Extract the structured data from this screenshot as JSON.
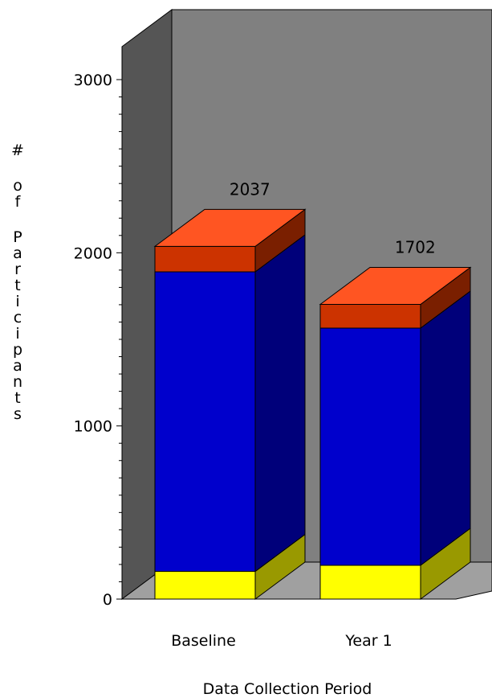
{
  "chart_data": {
    "type": "bar",
    "stacked": true,
    "three_d": true,
    "categories": [
      "Baseline",
      "Year 1"
    ],
    "series": [
      {
        "values": [
          160,
          195
        ],
        "color": "#ffff00"
      },
      {
        "values": [
          1730,
          1370
        ],
        "color": "#0000cc"
      },
      {
        "values": [
          147,
          137
        ],
        "color": "#cc3300"
      }
    ],
    "totals": [
      "2037",
      "1702"
    ],
    "xlabel": "Data Collection Period",
    "ylabel": "# of Participants",
    "ylim": [
      0,
      3000
    ],
    "yticks": [
      "0",
      "1000",
      "2000",
      "3000"
    ],
    "grid": false,
    "colors": {
      "back_wall": "#808080",
      "side_wall": "#555555",
      "floor": "#a0a0a0",
      "top_face": "#ff5522"
    }
  }
}
